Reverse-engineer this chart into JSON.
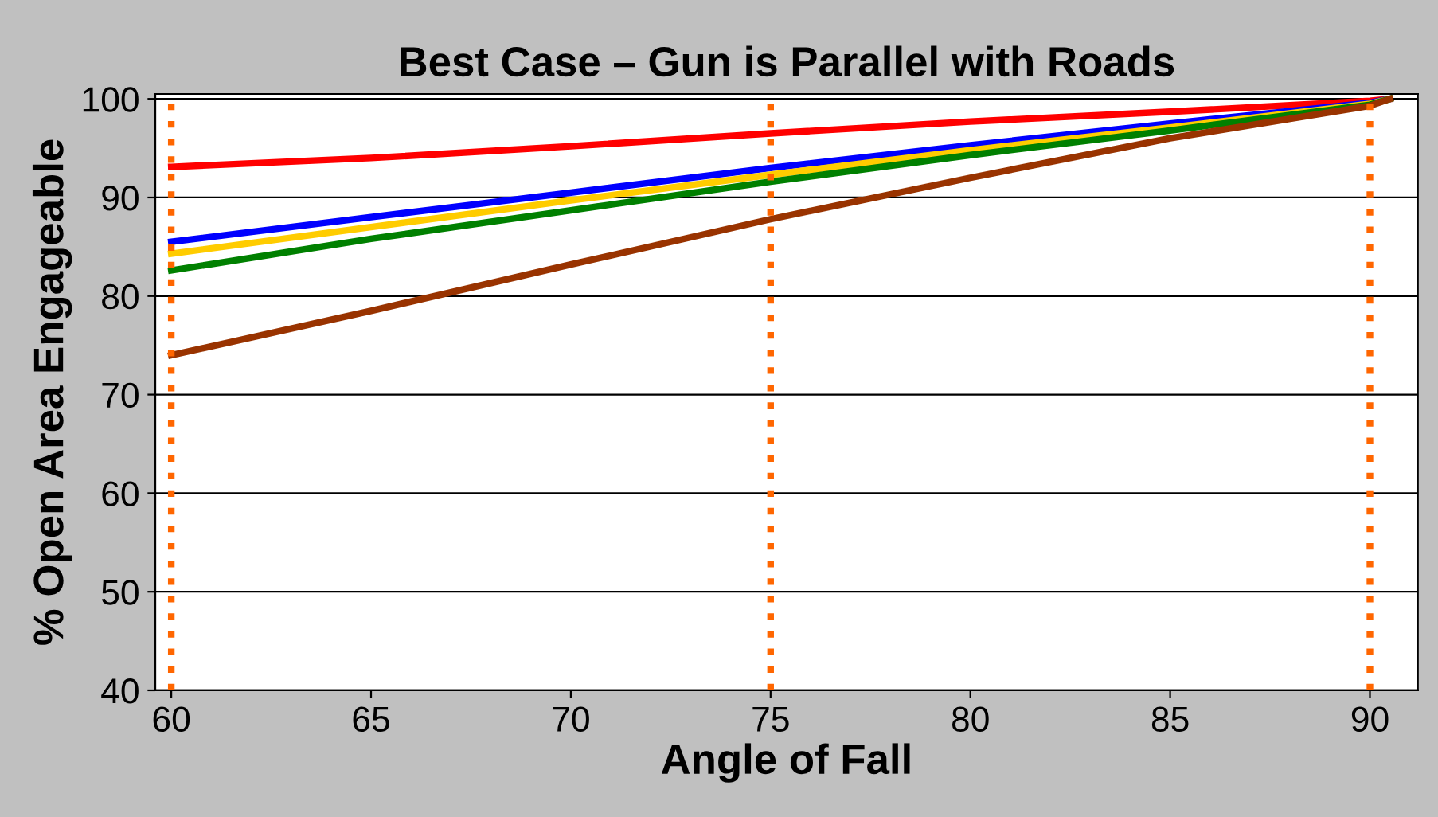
{
  "chart_data": {
    "type": "line",
    "title": "Best Case – Gun is Parallel with Roads",
    "xlabel": "Angle of Fall",
    "ylabel": "% Open Area Engageable",
    "xlim": [
      59.6,
      91.2
    ],
    "ylim": [
      40,
      100.5
    ],
    "xticks": [
      60,
      65,
      70,
      75,
      80,
      85,
      90
    ],
    "yticks": [
      40,
      50,
      60,
      70,
      80,
      90,
      100
    ],
    "grid": "y",
    "marker": "none",
    "line_style": "solid",
    "legend": false,
    "series": [
      {
        "color": "#ff0000",
        "x": [
          60,
          65,
          70,
          75,
          80,
          85,
          90,
          90.5
        ],
        "values": [
          93.1,
          94.0,
          95.2,
          96.5,
          97.7,
          98.7,
          99.8,
          100
        ]
      },
      {
        "color": "#0000ff",
        "x": [
          60,
          65,
          70,
          75,
          80,
          85,
          90,
          90.5
        ],
        "values": [
          85.5,
          88.0,
          90.5,
          93.0,
          95.3,
          97.5,
          99.6,
          100
        ]
      },
      {
        "color": "#ffcc00",
        "x": [
          60,
          65,
          70,
          75,
          80,
          85,
          90,
          90.5
        ],
        "values": [
          84.3,
          87.0,
          89.7,
          92.3,
          94.8,
          97.1,
          99.5,
          100
        ]
      },
      {
        "color": "#008000",
        "x": [
          60,
          65,
          70,
          75,
          80,
          85,
          90,
          90.5
        ],
        "values": [
          82.6,
          85.8,
          88.7,
          91.6,
          94.3,
          96.8,
          99.4,
          100
        ]
      },
      {
        "color": "#993300",
        "x": [
          60,
          65,
          70,
          75,
          80,
          85,
          90,
          90.5
        ],
        "values": [
          74.0,
          78.5,
          83.2,
          87.8,
          92.0,
          96.0,
          99.3,
          100
        ]
      }
    ],
    "ref_lines": [
      {
        "axis": "x",
        "value": 60,
        "color": "#ff6600",
        "line_style": "dotted"
      },
      {
        "axis": "x",
        "value": 75,
        "color": "#ff6600",
        "line_style": "dotted"
      },
      {
        "axis": "x",
        "value": 90,
        "color": "#ff6600",
        "line_style": "dotted"
      }
    ]
  }
}
